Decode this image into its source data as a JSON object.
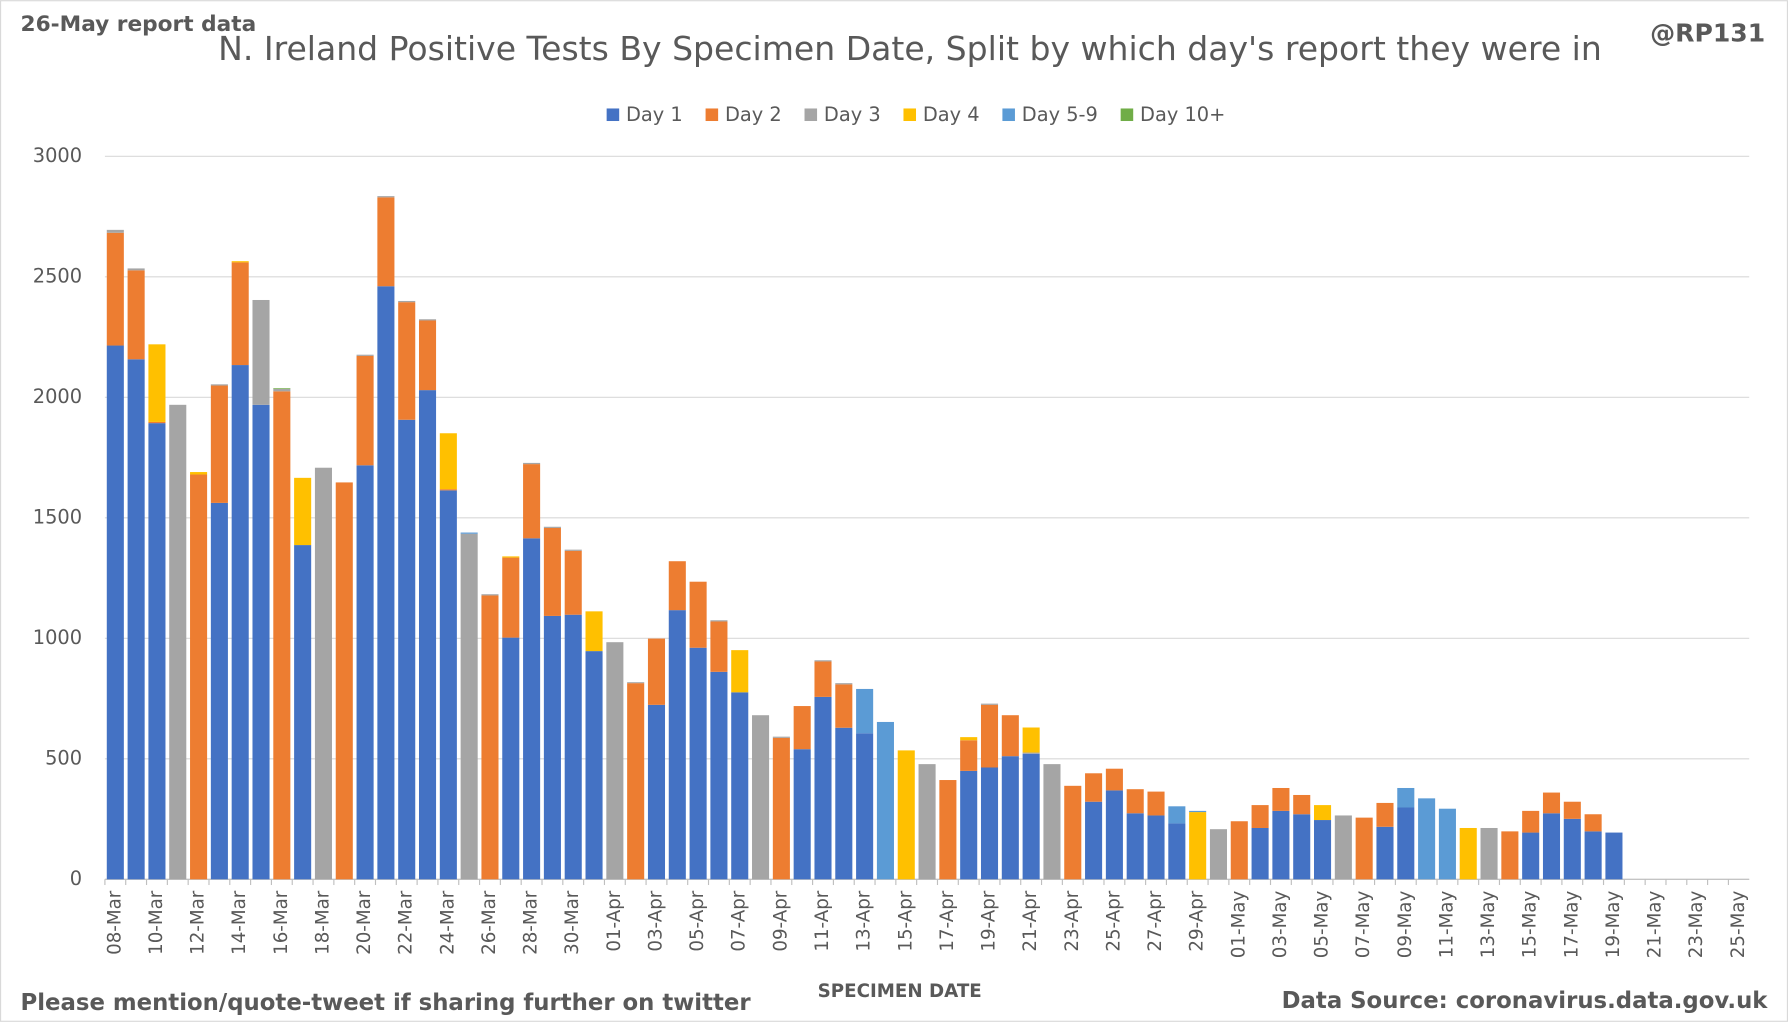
{
  "chart_data": {
    "type": "stacked_bar",
    "title": "N. Ireland Positive Tests By Specimen Date, Split by which day's report they were in",
    "corner_note": "26-May report data",
    "handle": "@RP131",
    "footer_note": "Please mention/quote-tweet if sharing further on twitter",
    "source": "Data Source: coronavirus.data.gov.uk",
    "x_label": "SPECIMEN DATE",
    "categories": [
      "08-Mar",
      null,
      "10-Mar",
      null,
      "12-Mar",
      null,
      "14-Mar",
      null,
      "16-Mar",
      null,
      "18-Mar",
      null,
      "20-Mar",
      null,
      "22-Mar",
      null,
      "24-Mar",
      null,
      "26-Mar",
      null,
      "28-Mar",
      null,
      "30-Mar",
      null,
      "01-Apr",
      null,
      "03-Apr",
      null,
      "05-Apr",
      null,
      "07-Apr",
      null,
      "09-Apr",
      null,
      "11-Apr",
      null,
      "13-Apr",
      null,
      "15-Apr",
      null,
      "17-Apr",
      null,
      "19-Apr",
      null,
      "21-Apr",
      null,
      "23-Apr",
      null,
      "25-Apr",
      null,
      "27-Apr",
      null,
      "29-Apr",
      null,
      "01-May",
      null,
      "03-May",
      null,
      "05-May",
      null,
      "07-May",
      null,
      "09-May",
      null,
      "11-May",
      null,
      "13-May",
      null,
      "15-May",
      null,
      "17-May",
      null,
      "19-May",
      null,
      "21-May",
      null,
      "23-May",
      null,
      "25-May"
    ],
    "series": [
      {
        "name": "Day 1",
        "color": "#4472c4",
        "values": [
          2215,
          2158,
          1893,
          0,
          0,
          1562,
          2134,
          1969,
          0,
          1387,
          0,
          0,
          1718,
          2461,
          1907,
          2030,
          1614,
          0,
          0,
          1003,
          1415,
          1093,
          1098,
          947,
          0,
          0,
          724,
          1117,
          961,
          861,
          776,
          0,
          0,
          540,
          757,
          629,
          606,
          0,
          0,
          0,
          0,
          450,
          464,
          511,
          521,
          0,
          0,
          322,
          369,
          274,
          265,
          232,
          0,
          0,
          0,
          213,
          284,
          270,
          246,
          0,
          0,
          218,
          298,
          0,
          0,
          0,
          0,
          0,
          194,
          274,
          251,
          199,
          194,
          0,
          0,
          0,
          0,
          0,
          0
        ]
      },
      {
        "name": "Day 2",
        "color": "#ed7d31",
        "values": [
          468,
          369,
          5,
          0,
          1680,
          487,
          426,
          0,
          2025,
          0,
          0,
          1647,
          454,
          369,
          488,
          289,
          5,
          0,
          1178,
          332,
          308,
          365,
          265,
          0,
          0,
          814,
          275,
          203,
          274,
          209,
          0,
          0,
          587,
          179,
          147,
          180,
          0,
          0,
          0,
          0,
          412,
          127,
          260,
          170,
          0,
          0,
          388,
          118,
          90,
          100,
          99,
          0,
          0,
          0,
          241,
          95,
          95,
          80,
          0,
          0,
          256,
          99,
          0,
          0,
          0,
          0,
          0,
          199,
          90,
          86,
          71,
          71,
          0,
          0,
          0,
          0,
          0,
          0,
          0
        ]
      },
      {
        "name": "Day 3",
        "color": "#a5a5a5",
        "values": [
          12,
          8,
          0,
          1969,
          0,
          5,
          0,
          435,
          10,
          0,
          1708,
          0,
          5,
          5,
          5,
          5,
          0,
          1434,
          5,
          0,
          5,
          5,
          5,
          0,
          984,
          4,
          0,
          0,
          0,
          5,
          0,
          681,
          5,
          0,
          5,
          5,
          0,
          0,
          0,
          478,
          0,
          0,
          5,
          0,
          5,
          478,
          0,
          0,
          0,
          0,
          0,
          0,
          0,
          208,
          0,
          0,
          0,
          0,
          0,
          265,
          0,
          0,
          0,
          0,
          0,
          0,
          213,
          0,
          0,
          0,
          0,
          0,
          0,
          0,
          0,
          0,
          0,
          0,
          0
        ]
      },
      {
        "name": "Day 4",
        "color": "#ffc000",
        "values": [
          0,
          0,
          322,
          0,
          10,
          0,
          5,
          0,
          0,
          279,
          0,
          0,
          0,
          0,
          0,
          0,
          232,
          0,
          0,
          5,
          0,
          0,
          0,
          165,
          0,
          0,
          0,
          0,
          0,
          0,
          175,
          0,
          0,
          0,
          0,
          0,
          0,
          0,
          535,
          0,
          0,
          13,
          0,
          0,
          104,
          0,
          0,
          0,
          0,
          0,
          0,
          0,
          279,
          0,
          0,
          0,
          0,
          0,
          62,
          0,
          0,
          0,
          0,
          0,
          0,
          213,
          0,
          0,
          0,
          0,
          0,
          0,
          0,
          0,
          0,
          0,
          0,
          0,
          0
        ]
      },
      {
        "name": "Day 5-9",
        "color": "#5b9bd5",
        "values": [
          0,
          0,
          0,
          0,
          0,
          0,
          0,
          0,
          0,
          0,
          0,
          0,
          0,
          0,
          0,
          0,
          0,
          5,
          0,
          0,
          0,
          0,
          0,
          0,
          0,
          0,
          0,
          0,
          0,
          0,
          0,
          0,
          0,
          0,
          0,
          0,
          184,
          653,
          0,
          0,
          0,
          0,
          0,
          0,
          0,
          0,
          0,
          0,
          0,
          0,
          0,
          71,
          5,
          0,
          0,
          0,
          0,
          0,
          0,
          0,
          0,
          0,
          81,
          336,
          293,
          0,
          0,
          0,
          0,
          0,
          0,
          0,
          0,
          0,
          0,
          0,
          0,
          0,
          0
        ]
      },
      {
        "name": "Day 10+",
        "color": "#70ad47",
        "values": [
          0,
          0,
          0,
          0,
          0,
          0,
          0,
          0,
          3,
          0,
          0,
          0,
          0,
          0,
          0,
          0,
          0,
          0,
          0,
          0,
          0,
          0,
          0,
          0,
          0,
          0,
          0,
          0,
          0,
          0,
          0,
          0,
          0,
          0,
          0,
          0,
          0,
          0,
          0,
          0,
          0,
          0,
          0,
          0,
          0,
          0,
          0,
          0,
          0,
          0,
          0,
          0,
          0,
          0,
          0,
          0,
          0,
          0,
          0,
          0,
          0,
          0,
          0,
          0,
          0,
          0,
          0,
          0,
          0,
          0,
          0,
          0,
          0,
          0,
          0,
          0,
          0,
          0,
          0
        ]
      }
    ],
    "ylim": [
      0,
      3000
    ],
    "yticks": [
      0,
      500,
      1000,
      1500,
      2000,
      2500,
      3000
    ],
    "grid": true,
    "legend": "top"
  }
}
